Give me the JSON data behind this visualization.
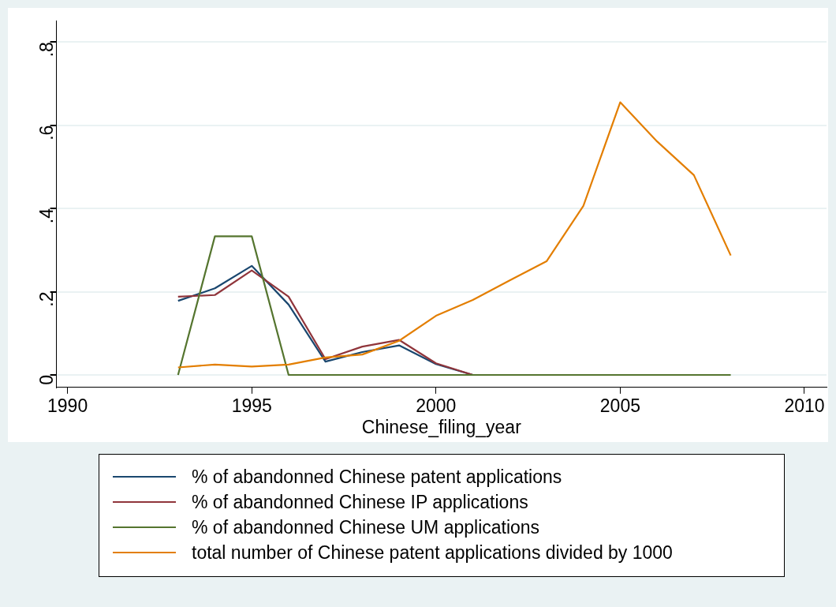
{
  "chart_data": {
    "type": "line",
    "xlabel": "Chinese_filing_year",
    "x": [
      1993,
      1994,
      1995,
      1996,
      1997,
      1998,
      1999,
      2000,
      2001,
      2002,
      2003,
      2004,
      2005,
      2006,
      2007,
      2008
    ],
    "series": [
      {
        "name": "% of abandonned Chinese patent applications",
        "color": "#1a476f",
        "values": [
          0.178,
          0.208,
          0.262,
          0.169,
          0.032,
          0.055,
          0.071,
          0.026,
          0,
          null,
          null,
          null,
          null,
          null,
          null,
          null
        ]
      },
      {
        "name": "% of abandonned Chinese IP applications",
        "color": "#90353b",
        "values": [
          0.188,
          0.192,
          0.251,
          0.188,
          0.038,
          0.068,
          0.084,
          0.028,
          0,
          null,
          null,
          null,
          null,
          null,
          null,
          null
        ]
      },
      {
        "name": "% of abandonned Chinese UM applications",
        "color": "#55752f",
        "values": [
          0,
          0.333,
          0.333,
          0,
          0,
          0,
          0,
          0,
          0,
          0,
          0,
          0,
          0,
          0,
          0,
          0
        ]
      },
      {
        "name": "total number of Chinese patent applications divided by 1000",
        "color": "#e37e00",
        "values": [
          0.018,
          0.025,
          0.02,
          0.025,
          0.042,
          0.049,
          0.082,
          0.142,
          0.18,
          0.227,
          0.273,
          0.406,
          0.655,
          0.561,
          0.48,
          0.287
        ]
      }
    ],
    "xlim": [
      1989.7,
      2010.6
    ],
    "xticks": [
      1990,
      1995,
      2000,
      2005,
      2010
    ],
    "ylim": [
      -0.03,
      0.85
    ],
    "yticks": [
      {
        "value": 0,
        "label": "0"
      },
      {
        "value": 0.2,
        "label": ".2"
      },
      {
        "value": 0.4,
        "label": ".4"
      },
      {
        "value": 0.6,
        "label": ".6"
      },
      {
        "value": 0.8,
        "label": ".8"
      }
    ],
    "grid": "y",
    "legend": "bottom",
    "marker": "none",
    "line_style": "solid"
  }
}
